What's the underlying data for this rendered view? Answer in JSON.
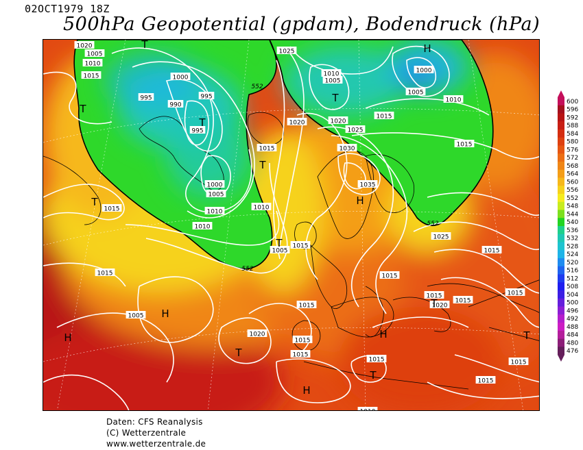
{
  "header": {
    "date": "02OCT1979  18Z",
    "title": "500hPa Geopotential (gpdam), Bodendruck (hPa)"
  },
  "footer": {
    "line1": "Daten: CFS Reanalysis",
    "line2": "(C) Wetterzentrale",
    "line3": "www.wetterzentrale.de"
  },
  "legend": {
    "levels": [
      "600",
      "596",
      "592",
      "588",
      "584",
      "580",
      "576",
      "572",
      "568",
      "564",
      "560",
      "556",
      "552",
      "548",
      "544",
      "540",
      "536",
      "532",
      "528",
      "524",
      "520",
      "516",
      "512",
      "508",
      "504",
      "500",
      "496",
      "492",
      "488",
      "484",
      "480",
      "476"
    ],
    "colors": [
      "#c40f5a",
      "#a4101e",
      "#b81414",
      "#c81e14",
      "#d42d10",
      "#de4010",
      "#e65612",
      "#ec6e14",
      "#f08616",
      "#f49e18",
      "#f6b81a",
      "#f6d21c",
      "#f6ec1e",
      "#c8ec1e",
      "#7ce01e",
      "#22d422",
      "#1ed08c",
      "#1ec8b4",
      "#1ec4d0",
      "#1eb4e8",
      "#1e8cf0",
      "#1e64f0",
      "#1e3cf0",
      "#1e1ef0",
      "#3c1ee4",
      "#641edc",
      "#8c1ed4",
      "#b41ecc",
      "#cc1ec4",
      "#b41e9c",
      "#8c1e78",
      "#641e5a"
    ]
  },
  "map": {
    "pressure_labels": [
      "1000",
      "1005",
      "1010",
      "1015",
      "1000",
      "995",
      "995",
      "990",
      "995",
      "1000",
      "1005",
      "1010",
      "1010",
      "1020",
      "1015",
      "1025",
      "1010",
      "1005",
      "1000",
      "1005",
      "1010",
      "1015",
      "1020",
      "1015",
      "1025",
      "1030",
      "1035",
      "1025",
      "1015",
      "1015",
      "1015",
      "1010",
      "1005",
      "1005",
      "1015",
      "1020",
      "1015",
      "1015",
      "1015",
      "1015",
      "1015",
      "1015",
      "1020",
      "1015",
      "1015",
      "1015",
      "1010",
      "1015",
      "1020"
    ],
    "geopotential_labels": [
      "552",
      "552",
      "552"
    ],
    "pressure_centers": [
      "T",
      "T",
      "T",
      "T",
      "T",
      "T",
      "H",
      "H",
      "H",
      "T",
      "T",
      "T",
      "H",
      "H",
      "T",
      "H",
      "T"
    ]
  }
}
